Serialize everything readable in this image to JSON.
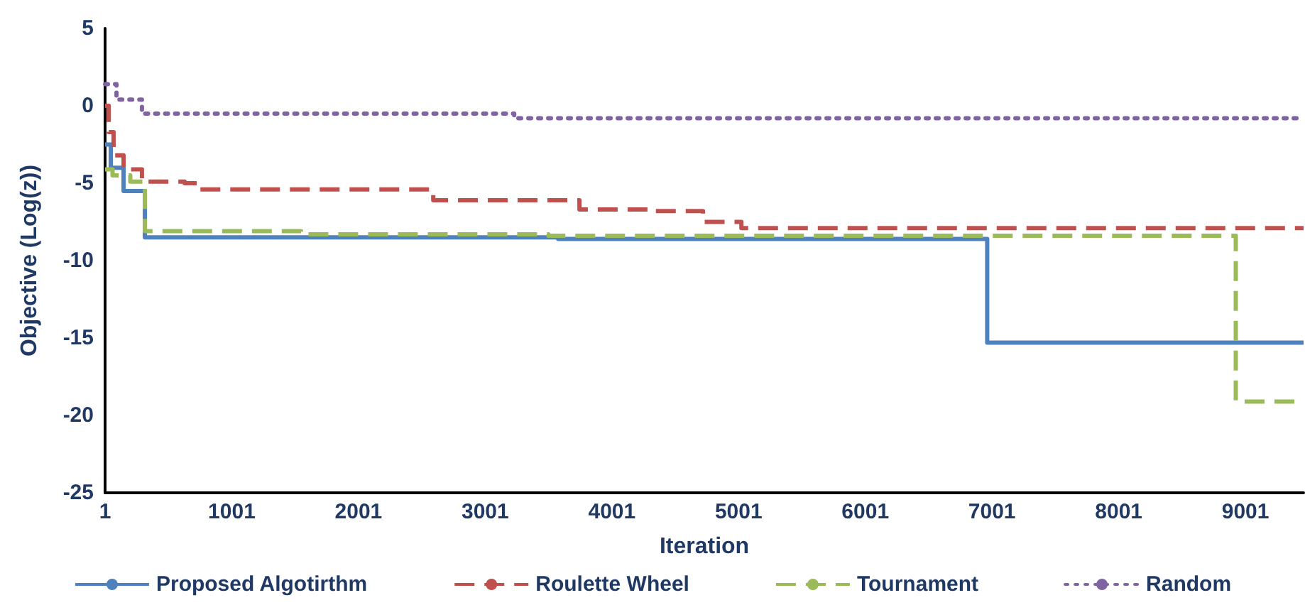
{
  "chart_data": {
    "type": "step",
    "xlabel": "Iteration",
    "ylabel": "Objective (Log(z))",
    "xlim": [
      1,
      9460
    ],
    "xticks": [
      1,
      1001,
      2001,
      3001,
      4001,
      5001,
      6001,
      7001,
      8001,
      9001
    ],
    "ylim": [
      -25,
      5
    ],
    "yticks": [
      -25,
      -20,
      -15,
      -10,
      -5,
      0,
      5
    ],
    "grid": false,
    "legend": "bottom",
    "marker": "none",
    "series": [
      {
        "name": "Proposed Algotirthm",
        "color": "#4f81bd",
        "line_style": "solid",
        "x": [
          1,
          46,
          147,
          315,
          3577,
          6963,
          9460
        ],
        "values": [
          -2.5,
          -4,
          -5.5,
          -8.5,
          -8.6,
          -15.3,
          -15.3
        ]
      },
      {
        "name": "Roulette Wheel",
        "color": "#c0504d",
        "line_style": "dashed",
        "x": [
          1,
          30,
          68,
          147,
          292,
          629,
          741,
          2591,
          3745,
          4328,
          4720,
          5023,
          9460
        ],
        "values": [
          0,
          -1.7,
          -3.2,
          -4.1,
          -4.9,
          -5.0,
          -5.4,
          -6.1,
          -6.7,
          -6.8,
          -7.5,
          -7.9,
          -7.9
        ]
      },
      {
        "name": "Tournament",
        "color": "#9bbb59",
        "line_style": "dashed",
        "x": [
          1,
          60,
          200,
          315,
          1548,
          3500,
          8925,
          9460
        ],
        "values": [
          -4.1,
          -4.5,
          -4.9,
          -8.1,
          -8.3,
          -8.4,
          -19.1,
          -19.1
        ]
      },
      {
        "name": "Random",
        "color": "#8064a2",
        "line_style": "dotted",
        "x": [
          1,
          91,
          292,
          3230,
          9460
        ],
        "values": [
          1.4,
          0.4,
          -0.5,
          -0.8,
          -0.8
        ]
      }
    ]
  }
}
